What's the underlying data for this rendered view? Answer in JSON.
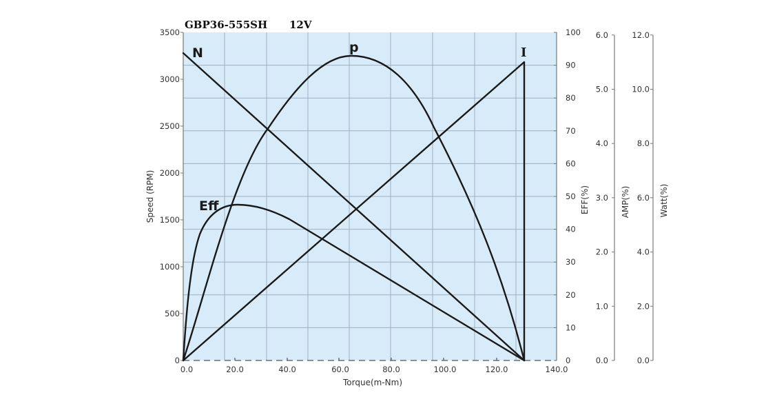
{
  "chart_data": {
    "type": "line",
    "title": "GBP36-555SH",
    "subtitle": "12V",
    "xlabel": "Torque(m-Nm)",
    "xlim": [
      0,
      140
    ],
    "x_ticks": [
      "0.0",
      "20.0",
      "40.0",
      "60.0",
      "80.0",
      "100.0",
      "120.0",
      "140.0"
    ],
    "y_axes": [
      {
        "name": "Speed (RPM)",
        "side": "left",
        "range": [
          0,
          3500
        ],
        "ticks": [
          "0",
          "500",
          "1000",
          "1500",
          "2000",
          "2500",
          "3000",
          "3500"
        ]
      },
      {
        "name": "EFF(%)",
        "side": "right",
        "range": [
          0,
          100
        ],
        "ticks": [
          "0",
          "10",
          "20",
          "30",
          "40",
          "50",
          "60",
          "70",
          "80",
          "90",
          "100"
        ]
      },
      {
        "name": "AMP(%)",
        "side": "right",
        "range": [
          0,
          6.0
        ],
        "ticks": [
          "0.0",
          "1.0",
          "2.0",
          "3.0",
          "4.0",
          "5.0",
          "6.0"
        ]
      },
      {
        "name": "Watt(%)",
        "side": "right",
        "range": [
          0,
          12.0
        ],
        "ticks": [
          "0.0",
          "2.0",
          "4.0",
          "6.0",
          "8.0",
          "10.0",
          "12.0"
        ]
      }
    ],
    "grid": true,
    "background": "#d8ebf8",
    "series": [
      {
        "name": "N",
        "label": "N",
        "axis": "Speed (RPM)",
        "x": [
          0,
          128
        ],
        "values": [
          3270,
          0
        ]
      },
      {
        "name": "I",
        "label": "I",
        "axis": "AMP(%)",
        "x": [
          0,
          128,
          128
        ],
        "values": [
          0,
          5.45,
          0
        ]
      },
      {
        "name": "P",
        "label": "p",
        "axis": "Watt(%)",
        "x": [
          0,
          16,
          32,
          48,
          64,
          80,
          96,
          112,
          128
        ],
        "values": [
          0,
          6.1,
          9.3,
          10.8,
          11.1,
          10.4,
          8.4,
          5.0,
          0
        ]
      },
      {
        "name": "Eff",
        "label": "Eff",
        "axis": "EFF(%)",
        "x": [
          0,
          2,
          5,
          10,
          15,
          20,
          22,
          30,
          40,
          60,
          80,
          100,
          120,
          128
        ],
        "values": [
          0,
          25,
          38,
          44,
          46.5,
          47.3,
          47.3,
          46,
          42.5,
          33,
          23.5,
          13.5,
          4,
          0
        ]
      }
    ]
  },
  "labels": {
    "title_model": "GBP36-555SH",
    "title_voltage": "12V",
    "xlabel": "Torque(m-Nm)",
    "ylabel_speed": "Speed (RPM)",
    "ylabel_eff": "EFF(%)",
    "ylabel_amp": "AMP(%)",
    "ylabel_watt": "Watt(%)",
    "curve_n": "N",
    "curve_p": "p",
    "curve_i": "I",
    "curve_eff": "Eff"
  }
}
